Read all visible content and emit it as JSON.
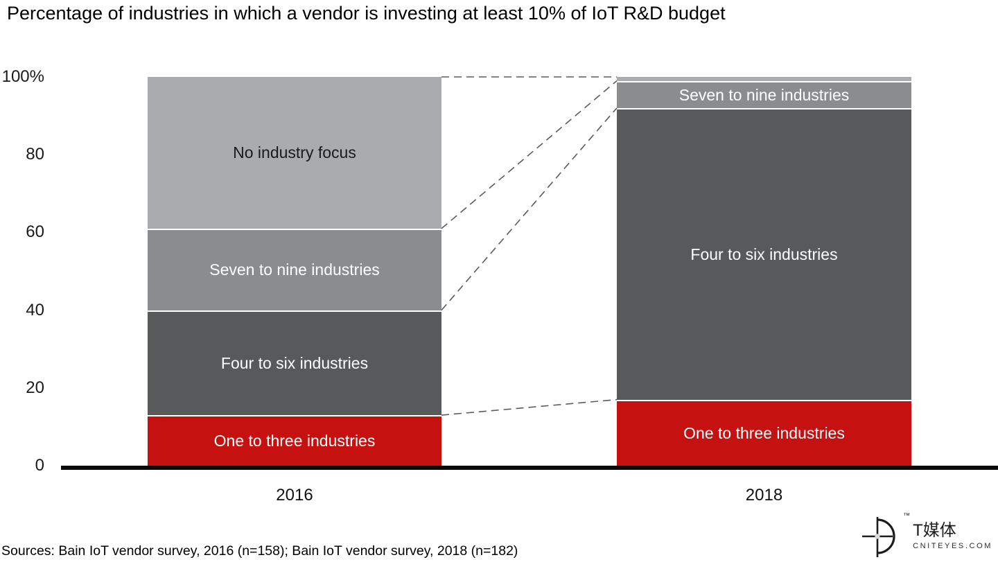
{
  "title": "Percentage of industries in which a vendor is investing at least 10% of IoT R&D budget",
  "y_axis": {
    "ticks": [
      {
        "label": "100%",
        "value": 100
      },
      {
        "label": "80",
        "value": 80
      },
      {
        "label": "60",
        "value": 60
      },
      {
        "label": "40",
        "value": 40
      },
      {
        "label": "20",
        "value": 20
      },
      {
        "label": "0",
        "value": 0
      }
    ]
  },
  "chart_data": {
    "type": "bar",
    "subtype": "stacked-100-percent",
    "title": "Percentage of industries in which a vendor is investing at least 10% of IoT R&D budget",
    "categories": [
      "2016",
      "2018"
    ],
    "ylim": [
      0,
      100
    ],
    "grid": false,
    "legend": "labels inside segments",
    "stack_order_bottom_to_top": [
      "One to three industries",
      "Four to six industries",
      "Seven to nine industries",
      "No industry focus"
    ],
    "series": [
      {
        "name": "One to three industries",
        "color": "#c51210",
        "text_color": "#ffffff",
        "values": [
          13,
          17
        ]
      },
      {
        "name": "Four to six industries",
        "color": "#58595b",
        "text_color": "#ffffff",
        "values": [
          27,
          75
        ]
      },
      {
        "name": "Seven to nine industries",
        "color": "#8a8c8e",
        "text_color": "#ffffff",
        "values": [
          21,
          7
        ]
      },
      {
        "name": "No industry focus",
        "color": "#aaabad",
        "text_color": "#1a1a1a",
        "values": [
          39,
          1
        ]
      }
    ],
    "connectors": {
      "style": "dashed",
      "color": "#5a5a5a",
      "note": "dashed lines link matching segment boundaries between the 2016 and 2018 bars"
    }
  },
  "footer": {
    "sources": "Sources: Bain IoT vendor survey, 2016 (n=158); Bain IoT vendor survey, 2018 (n=182)",
    "logo_text": "T媒体",
    "logo_domain": "CNITEYES.COM",
    "trademark": "™"
  }
}
